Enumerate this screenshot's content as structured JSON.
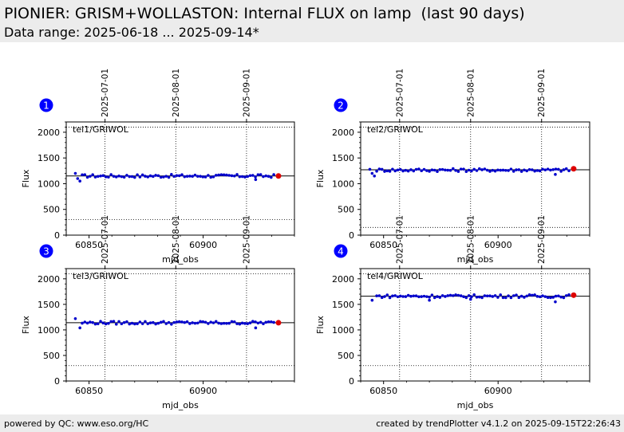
{
  "header": {
    "title": "PIONIER: GRISM+WOLLASTON: Internal FLUX on lamp  (last 90 days)",
    "subtitle": "Data range: 2025-06-18 ... 2025-09-14*"
  },
  "footer": {
    "left": "powered by QC: www.eso.org/HC",
    "right": "created by trendPlotter v4.1.2 on 2025-09-15T22:26:43"
  },
  "colors": {
    "points": "#0000cc",
    "last_point": "#dd0000",
    "badge": "#0000ff",
    "header_bg": "#ececec"
  },
  "chart_data": [
    {
      "type": "scatter",
      "badge": "1",
      "label": "tel1/GRIWOL",
      "xlabel": "mjd_obs",
      "ylabel": "Flux",
      "xlim": [
        60840,
        60940
      ],
      "ylim": [
        0,
        2200
      ],
      "x_ticks": [
        "60850",
        "60900"
      ],
      "y_ticks": [
        "0",
        "500",
        "1000",
        "1500",
        "2000"
      ],
      "date_ticks": [
        "2025-07-01",
        "2025-08-01",
        "2025-09-01"
      ],
      "date_positions": [
        60857,
        60888,
        60919
      ],
      "reference_line": 1150,
      "limits": [
        300,
        2100
      ],
      "mean": 1150,
      "last_point": [
        60933,
        1150
      ],
      "outliers": [
        [
          60844,
          1200
        ],
        [
          60845,
          1100
        ],
        [
          60846,
          1050
        ],
        [
          60923,
          1080
        ]
      ]
    },
    {
      "type": "scatter",
      "badge": "2",
      "label": "tel2/GRIWOL",
      "xlabel": "mjd_obs",
      "ylabel": "Flux",
      "xlim": [
        60840,
        60940
      ],
      "ylim": [
        0,
        2200
      ],
      "x_ticks": [
        "60850",
        "60900"
      ],
      "y_ticks": [
        "0",
        "500",
        "1000",
        "1500",
        "2000"
      ],
      "date_ticks": [
        "2025-07-01",
        "2025-08-01",
        "2025-09-01"
      ],
      "date_positions": [
        60857,
        60888,
        60919
      ],
      "reference_line": 1270,
      "limits": [
        150,
        2100
      ],
      "mean": 1265,
      "last_point": [
        60933,
        1290
      ],
      "outliers": [
        [
          60844,
          1280
        ],
        [
          60845,
          1200
        ],
        [
          60846,
          1150
        ],
        [
          60925,
          1180
        ]
      ]
    },
    {
      "type": "scatter",
      "badge": "3",
      "label": "tel3/GRIWOL",
      "xlabel": "mjd_obs",
      "ylabel": "Flux",
      "xlim": [
        60840,
        60940
      ],
      "ylim": [
        0,
        2200
      ],
      "x_ticks": [
        "60850",
        "60900"
      ],
      "y_ticks": [
        "0",
        "500",
        "1000",
        "1500",
        "2000"
      ],
      "date_ticks": [
        "2025-07-01",
        "2025-08-01",
        "2025-09-01"
      ],
      "date_positions": [
        60857,
        60888,
        60919
      ],
      "reference_line": 1140,
      "limits": [
        300,
        2100
      ],
      "mean": 1140,
      "last_point": [
        60933,
        1140
      ],
      "outliers": [
        [
          60844,
          1220
        ],
        [
          60846,
          1040
        ],
        [
          60923,
          1040
        ]
      ]
    },
    {
      "type": "scatter",
      "badge": "4",
      "label": "tel4/GRIWOL",
      "xlabel": "mjd_obs",
      "ylabel": "Flux",
      "xlim": [
        60840,
        60940
      ],
      "ylim": [
        0,
        2200
      ],
      "x_ticks": [
        "60850",
        "60900"
      ],
      "y_ticks": [
        "0",
        "500",
        "1000",
        "1500",
        "2000"
      ],
      "date_ticks": [
        "2025-07-01",
        "2025-08-01",
        "2025-09-01"
      ],
      "date_positions": [
        60857,
        60888,
        60919
      ],
      "reference_line": 1660,
      "limits": [
        300,
        2100
      ],
      "mean": 1660,
      "last_point": [
        60933,
        1680
      ],
      "outliers": [
        [
          60845,
          1580
        ],
        [
          60870,
          1580
        ],
        [
          60888,
          1600
        ],
        [
          60925,
          1550
        ]
      ]
    }
  ]
}
